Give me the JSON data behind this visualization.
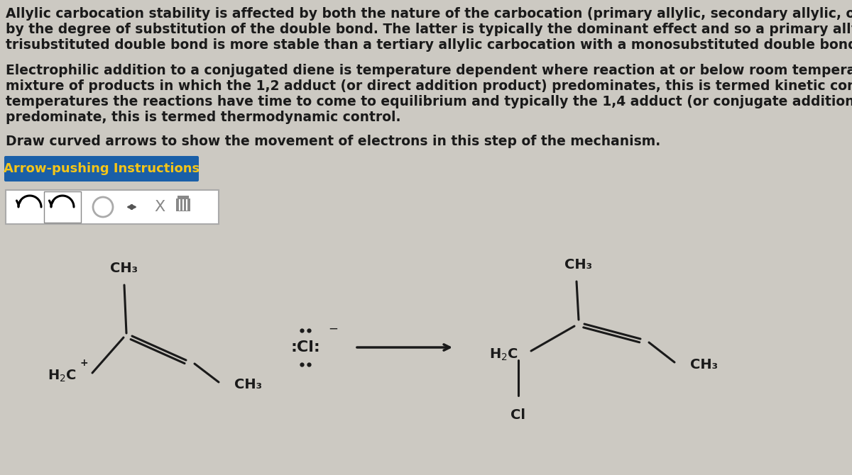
{
  "bg_color": "#ccc9c2",
  "text_color": "#1a1a1a",
  "p1_lines": [
    "Allylic carbocation stability is affected by both the nature of the carbocation (primary allylic, secondary allylic, or teru",
    "by the degree of substitution of the double bond. The latter is typically the dominant effect and so a primary allylic car",
    "trisubstituted double bond is more stable than a tertiary allylic carbocation with a monosubstituted double bond."
  ],
  "p2_lines": [
    "Electrophilic addition to a conjugated diene is temperature dependent where reaction at or below room temperature ty",
    "mixture of products in which the 1,2 adduct (or direct addition product) predominates, this is termed kinetic control. A",
    "temperatures the reactions have time to come to equilibrium and typically the 1,4 adduct (or conjugate addition produ",
    "predominate, this is termed thermodynamic control."
  ],
  "p3": "Draw curved arrows to show the movement of electrons in this step of the mechanism.",
  "button_text": "Arrow-pushing Instructions",
  "button_bg": "#1a5fa8",
  "button_text_color": "#f5c518",
  "font_size_text": 13.5,
  "font_size_chem": 14,
  "font_size_button": 13
}
